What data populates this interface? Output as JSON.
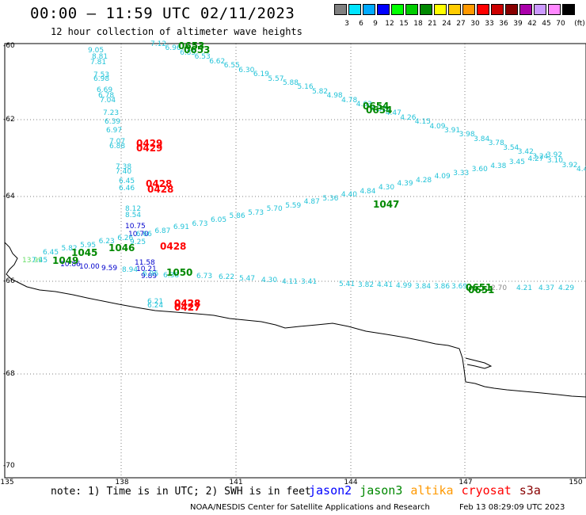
{
  "header": {
    "title": "00:00 – 11:59 UTC 02/11/2023",
    "subtitle": "12 hour collection of altimeter wave heights"
  },
  "colorbar": {
    "unit": "(ft)",
    "bins": [
      {
        "label": "3",
        "color": "#808080"
      },
      {
        "label": "6",
        "color": "#00e5ff"
      },
      {
        "label": "9",
        "color": "#00aaff"
      },
      {
        "label": "12",
        "color": "#0000ff"
      },
      {
        "label": "15",
        "color": "#00ff00"
      },
      {
        "label": "18",
        "color": "#00cc00"
      },
      {
        "label": "21",
        "color": "#008800"
      },
      {
        "label": "24",
        "color": "#ffff00"
      },
      {
        "label": "27",
        "color": "#ffcc00"
      },
      {
        "label": "30",
        "color": "#ff9900"
      },
      {
        "label": "33",
        "color": "#ff0000"
      },
      {
        "label": "36",
        "color": "#cc0000"
      },
      {
        "label": "39",
        "color": "#880000"
      },
      {
        "label": "42",
        "color": "#aa00aa"
      },
      {
        "label": "45",
        "color": "#cc99ff"
      },
      {
        "label": "70",
        "color": "#ff88ff"
      },
      {
        "label": "",
        "color": "#000000"
      }
    ]
  },
  "axes": {
    "lat_labels": [
      "-60",
      "-62",
      "-64",
      "-66",
      "-68",
      "-70"
    ],
    "lon_labels": [
      "135",
      "138",
      "141",
      "144",
      "147",
      "150"
    ]
  },
  "footer": {
    "note": "note: 1) Time is in UTC; 2) SWH is in feet",
    "legend": [
      {
        "name": "jason2",
        "color": "#0000ff"
      },
      {
        "name": "jason3",
        "color": "#008800"
      },
      {
        "name": "altika",
        "color": "#ff9900"
      },
      {
        "name": "cryosat",
        "color": "#ff0000"
      },
      {
        "name": "s3a",
        "color": "#880000"
      }
    ],
    "credit": "NOAA/NESDIS Center for Satellite Applications and Research",
    "timestamp": "Feb 13 08:29:09 UTC 2023"
  },
  "tracks": {
    "track_a_values": [
      "7.12",
      "6.96",
      "6.85",
      "6.53",
      "6.62",
      "6.55",
      "6.30",
      "6.19",
      "5.57",
      "5.88",
      "5.16",
      "5.82",
      "4.98",
      "4.78",
      "4.63",
      "4.32",
      "4.47",
      "4.26",
      "4.15",
      "4.09",
      "3.91",
      "3.98",
      "3.84",
      "3.78",
      "3.54",
      "3.42",
      "3.24",
      "3.10",
      "3.92",
      "4.4"
    ],
    "track_a_times": [
      "0653",
      "0653",
      "0654",
      "0654"
    ],
    "track_b_values": [
      "9.05",
      "8.81",
      "7.81",
      "7.53",
      "6.98",
      "6.69",
      "6.78",
      "7.04",
      "7.23",
      "6.39",
      "6.97",
      "7.07",
      "6.88",
      "7.38",
      "7.40",
      "6.45",
      "6.46",
      "8.12",
      "8.54",
      "10.75",
      "10.70",
      "9.25",
      "11.58",
      "10.21",
      "9.89"
    ],
    "track_b_times": [
      "0429",
      "0429",
      "0428",
      "0428",
      "0428",
      "0428",
      "0427"
    ],
    "track_c_values": [
      "6.45",
      "5.82",
      "5.95",
      "6.23",
      "6.26",
      "6.66",
      "6.87",
      "6.91",
      "6.73",
      "6.05",
      "5.86",
      "5.73",
      "5.70",
      "5.59",
      "4.87",
      "5.36",
      "4.40",
      "4.84",
      "4.30",
      "4.39",
      "4.28",
      "4.09",
      "3.33",
      "3.60",
      "4.38",
      "3.45",
      "4.27",
      "3.92"
    ],
    "track_c_times": [
      "1045",
      "1046",
      "1047"
    ],
    "track_d_values": [
      "13.99",
      "7.45",
      "10.86",
      "10.00",
      "9.59",
      "8.94",
      "6.96",
      "6.38",
      "6.73",
      "6.22",
      "5.47",
      "4.30",
      "4.11",
      "3.41",
      "5.41",
      "3.82",
      "4.41",
      "4.99",
      "3.84",
      "3.86",
      "3.69",
      "2.70",
      "4.21",
      "4.37",
      "4.29"
    ],
    "track_d_times": [
      "1049",
      "1050",
      "0651",
      "0651"
    ],
    "track_e_values": [
      "6.21",
      "6.24"
    ],
    "track_e_times": [
      "0428",
      "0427"
    ]
  }
}
